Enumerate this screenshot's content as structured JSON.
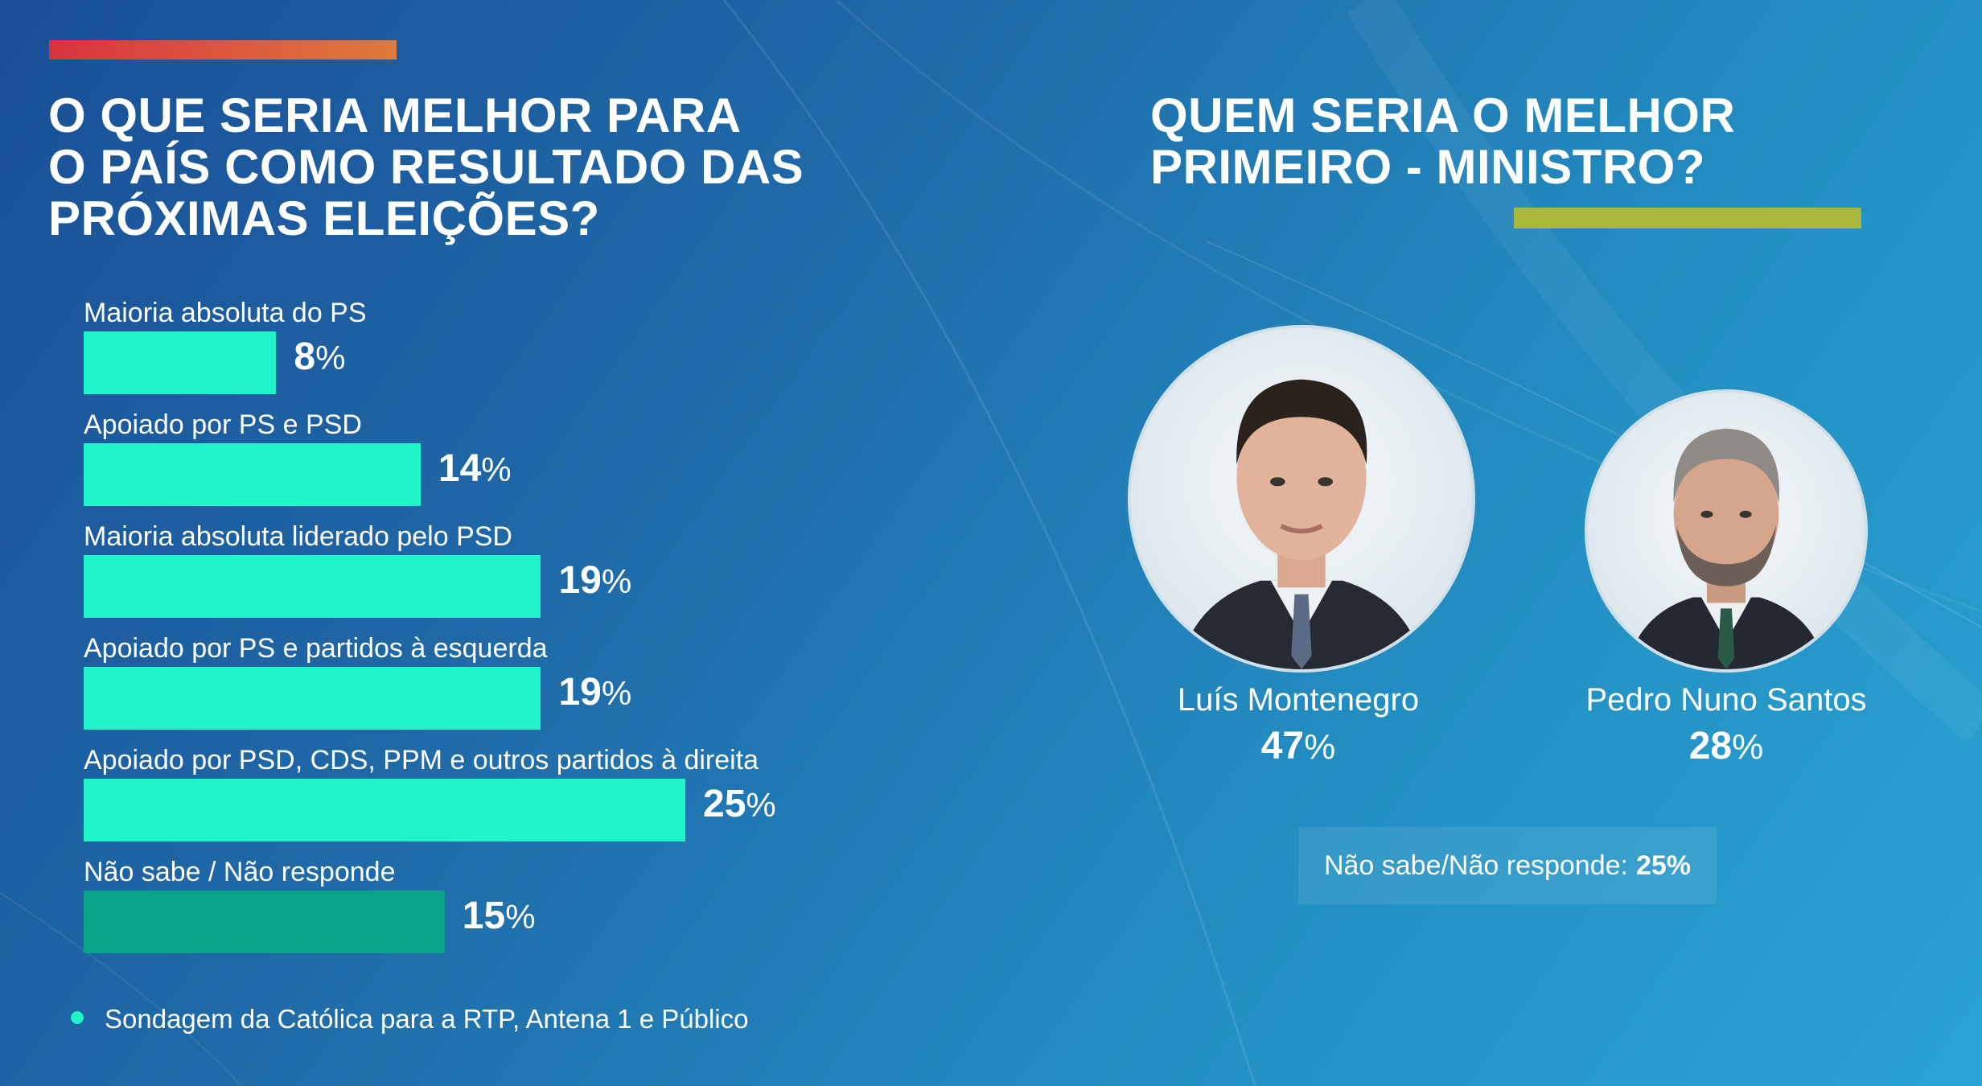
{
  "colors": {
    "bar": "#1ff5c9",
    "bar_dont_know": "#0aa389",
    "accent_left": "#d8333f",
    "accent_right": "#a7b83a",
    "text": "#ffffff"
  },
  "left_title": "O QUE SERIA MELHOR PARA\nO PAÍS COMO RESULTADO DAS\nPRÓXIMAS ELEIÇÕES?",
  "right_title": "QUEM SERIA O MELHOR\nPRIMEIRO - MINISTRO?",
  "percent_symbol": "%",
  "chart_data": [
    {
      "type": "bar",
      "orientation": "horizontal",
      "title": "O QUE SERIA MELHOR PARA O PAÍS COMO RESULTADO DAS PRÓXIMAS ELEIÇÕES?",
      "categories": [
        "Maioria absoluta do PS",
        "Apoiado por PS e PSD",
        "Maioria absoluta liderado pelo PSD",
        "Apoiado por PS e partidos à esquerda",
        "Apoiado por PSD, CDS, PPM e outros partidos à direita",
        "Não sabe / Não responde"
      ],
      "values": [
        8,
        14,
        19,
        19,
        25,
        15
      ],
      "unit": "%",
      "xlim": [
        0,
        25
      ],
      "grid": false,
      "legend": "none"
    },
    {
      "type": "bar",
      "title": "QUEM SERIA O MELHOR PRIMEIRO - MINISTRO?",
      "categories": [
        "Luís Montenegro",
        "Pedro Nuno Santos",
        "Não sabe/Não responde"
      ],
      "values": [
        47,
        28,
        25
      ],
      "unit": "%"
    }
  ],
  "candidates": [
    {
      "name": "Luís Montenegro",
      "value": 47
    },
    {
      "name": "Pedro Nuno Santos",
      "value": 28
    }
  ],
  "no_answer": {
    "label": "Não sabe/Não responde:",
    "value": "25%"
  },
  "footnote": "Sondagem da Católica para a RTP, Antena 1 e Público"
}
